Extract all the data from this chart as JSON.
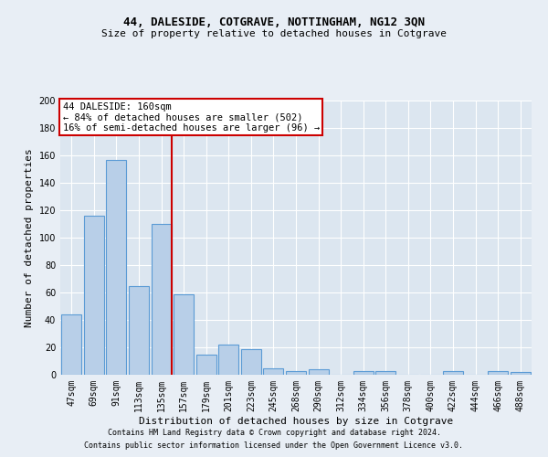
{
  "title": "44, DALESIDE, COTGRAVE, NOTTINGHAM, NG12 3QN",
  "subtitle": "Size of property relative to detached houses in Cotgrave",
  "xlabel": "Distribution of detached houses by size in Cotgrave",
  "ylabel": "Number of detached properties",
  "categories": [
    "47sqm",
    "69sqm",
    "91sqm",
    "113sqm",
    "135sqm",
    "157sqm",
    "179sqm",
    "201sqm",
    "223sqm",
    "245sqm",
    "268sqm",
    "290sqm",
    "312sqm",
    "334sqm",
    "356sqm",
    "378sqm",
    "400sqm",
    "422sqm",
    "444sqm",
    "466sqm",
    "488sqm"
  ],
  "values": [
    44,
    116,
    157,
    65,
    110,
    59,
    15,
    22,
    19,
    5,
    3,
    4,
    0,
    3,
    3,
    0,
    0,
    3,
    0,
    3,
    2
  ],
  "bar_color": "#b8cfe8",
  "bar_edge_color": "#5b9bd5",
  "annotation_box_color": "#cc0000",
  "vline_after_index": 4,
  "ylim": [
    0,
    200
  ],
  "yticks": [
    0,
    20,
    40,
    60,
    80,
    100,
    120,
    140,
    160,
    180,
    200
  ],
  "property_label": "44 DALESIDE: 160sqm",
  "pct_smaller": 84,
  "count_smaller": 502,
  "pct_larger": 16,
  "count_larger": 96,
  "footer1": "Contains HM Land Registry data © Crown copyright and database right 2024.",
  "footer2": "Contains public sector information licensed under the Open Government Licence v3.0.",
  "background_color": "#e8eef5",
  "plot_bg_color": "#dce6f0",
  "grid_color": "#ffffff",
  "title_fontsize": 9,
  "subtitle_fontsize": 8,
  "ylabel_fontsize": 8,
  "xlabel_fontsize": 8,
  "tick_fontsize": 7,
  "annotation_fontsize": 7.5,
  "footer_fontsize": 6
}
